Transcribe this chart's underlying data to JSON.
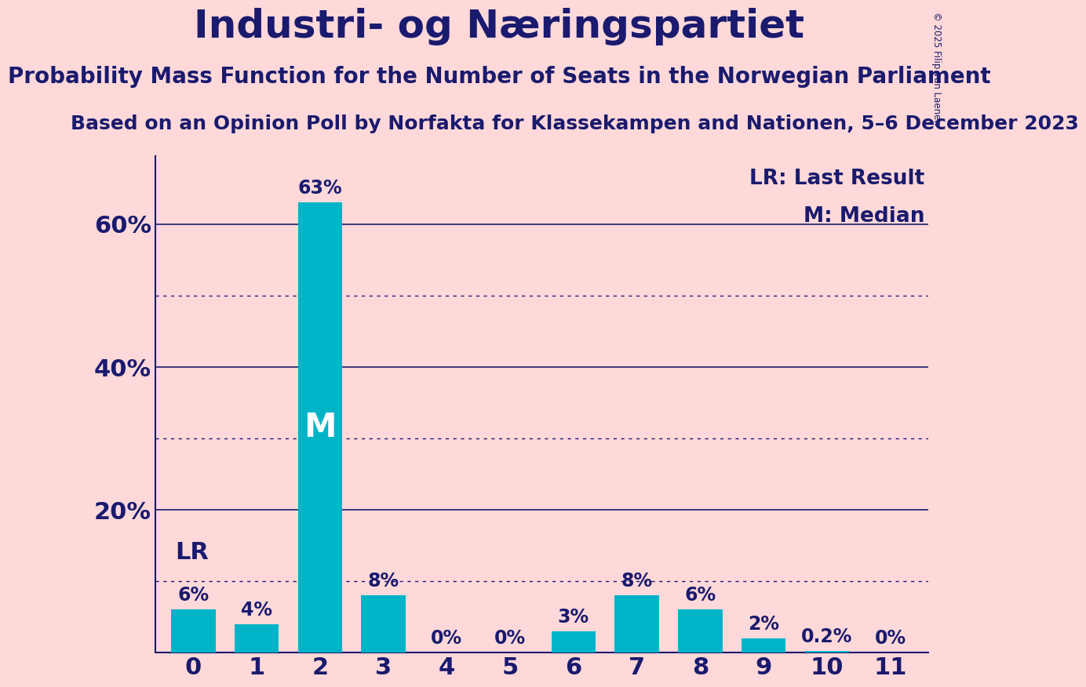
{
  "title": "Industri- og Næringspartiet",
  "subtitle": "Probability Mass Function for the Number of Seats in the Norwegian Parliament",
  "source": "Based on an Opinion Poll by Norfakta for Klassekampen and Nationen, 5–6 December 2023",
  "copyright": "© 2025 Filip van Laenen",
  "categories": [
    0,
    1,
    2,
    3,
    4,
    5,
    6,
    7,
    8,
    9,
    10,
    11
  ],
  "values": [
    0.06,
    0.04,
    0.63,
    0.08,
    0.0,
    0.0,
    0.03,
    0.08,
    0.06,
    0.02,
    0.002,
    0.0
  ],
  "value_labels": [
    "6%",
    "4%",
    "63%",
    "8%",
    "0%",
    "0%",
    "3%",
    "8%",
    "6%",
    "2%",
    "0.2%",
    "0%"
  ],
  "bar_color": "#00B4C8",
  "background_color": "#FFD9D9",
  "text_color": "#1a1a6e",
  "title_fontsize": 36,
  "subtitle_fontsize": 20,
  "source_fontsize": 18,
  "ylabel_ticks": [
    0.0,
    0.2,
    0.4,
    0.6
  ],
  "ylabel_labels": [
    "",
    "20%",
    "40%",
    "60%"
  ],
  "solid_gridlines": [
    0.2,
    0.4,
    0.6
  ],
  "dotted_gridlines": [
    0.1,
    0.3,
    0.5
  ],
  "median_bar": 2,
  "last_result_bar": 0,
  "legend_lr": "LR: Last Result",
  "legend_m": "M: Median"
}
